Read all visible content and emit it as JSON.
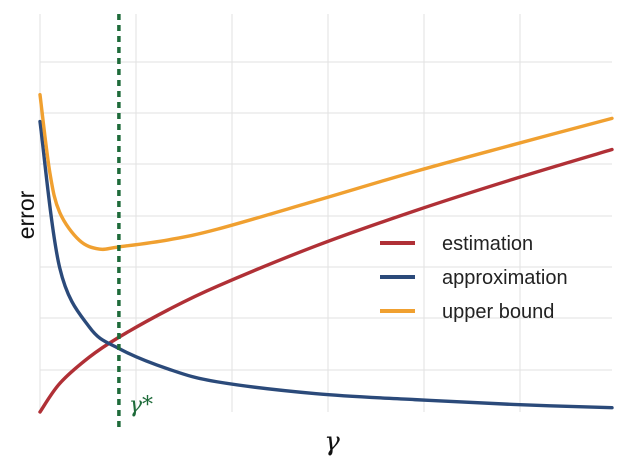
{
  "chart_data": {
    "type": "line",
    "xlabel": "γ",
    "ylabel": "error",
    "x_range": [
      0.1,
      3.0
    ],
    "y_range": [
      0.5,
      7.9
    ],
    "grid": true,
    "legend_position": "center-right",
    "series": [
      {
        "name": "estimation",
        "color": "#b03036",
        "x": [
          0.1,
          0.2,
          0.35,
          0.5,
          0.75,
          1.0,
          1.5,
          2.0,
          2.5,
          3.0
        ],
        "y": [
          0.5,
          1.03,
          1.52,
          1.89,
          2.4,
          2.84,
          3.59,
          4.24,
          4.83,
          5.38
        ]
      },
      {
        "name": "approximation",
        "color": "#2b4a7a",
        "x": [
          0.1,
          0.2,
          0.35,
          0.5,
          0.75,
          1.0,
          1.5,
          2.0,
          2.5,
          3.0
        ],
        "y": [
          5.9,
          3.18,
          2.08,
          1.68,
          1.3,
          1.06,
          0.84,
          0.73,
          0.64,
          0.58
        ]
      },
      {
        "name": "upper bound",
        "color": "#f0a030",
        "x": [
          0.1,
          0.15,
          0.2,
          0.3,
          0.4,
          0.5,
          0.75,
          1.0,
          1.5,
          2.0,
          2.5,
          3.0
        ],
        "y": [
          6.4,
          4.95,
          4.21,
          3.69,
          3.53,
          3.57,
          3.7,
          3.9,
          4.43,
          4.97,
          5.47,
          5.96
        ]
      }
    ],
    "vline": {
      "x": 0.5,
      "label": "γ*",
      "color": "#1e6b3a"
    },
    "legend": [
      "estimation",
      "approximation",
      "upper bound"
    ]
  }
}
